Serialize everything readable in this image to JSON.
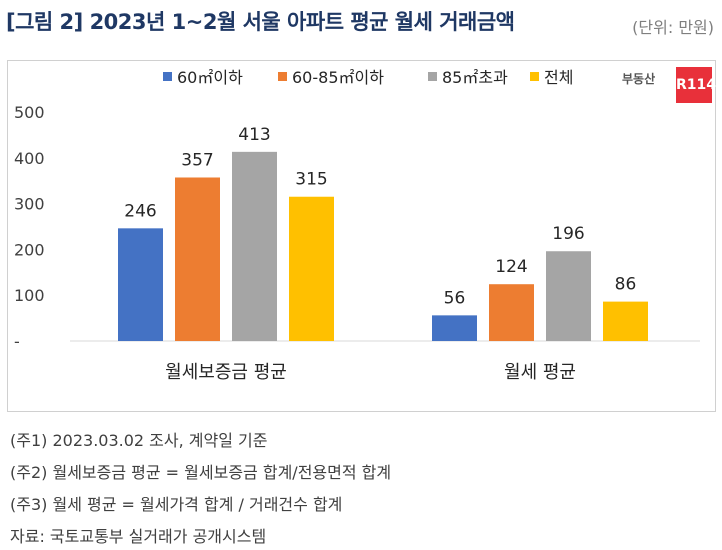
{
  "header": {
    "title": "[그림 2] 2023년 1~2월 서울 아파트 평균 월세 거래금액",
    "unit": "(단위: 만원)"
  },
  "logo": {
    "text": "부동산",
    "badge": "R114"
  },
  "chart_data": {
    "type": "bar",
    "categories": [
      "월세보증금 평균",
      "월세 평균"
    ],
    "series": [
      {
        "name": "60㎡이하",
        "color": "#4472c4",
        "values": [
          246,
          56
        ]
      },
      {
        "name": "60-85㎡이하",
        "color": "#ed7d31",
        "values": [
          357,
          124
        ]
      },
      {
        "name": "85㎡초과",
        "color": "#a5a5a5",
        "values": [
          413,
          196
        ]
      },
      {
        "name": "전체",
        "color": "#ffc000",
        "values": [
          315,
          86
        ]
      }
    ],
    "yticks": [
      "-",
      "100",
      "200",
      "300",
      "400",
      "500"
    ],
    "ylim": [
      0,
      500
    ],
    "legend": "top-center"
  },
  "notes": [
    "(주1) 2023.03.02 조사, 계약일 기준",
    "(주2) 월세보증금 평균 = 월세보증금 합계/전용면적 합계",
    "(주3) 월세 평균 = 월세가격 합계 / 거래건수 합계",
    "자료: 국토교통부 실거래가 공개시스템"
  ]
}
